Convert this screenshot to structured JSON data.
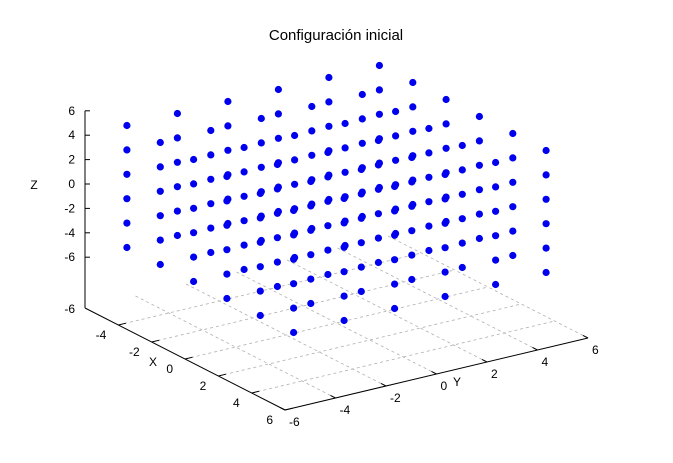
{
  "chart_data": {
    "type": "scatter",
    "title": "Configuración inicial",
    "xlabel": "X",
    "ylabel": "Y",
    "zlabel": "Z",
    "xlim": [
      -6,
      6
    ],
    "ylim": [
      -6,
      6
    ],
    "zlim": [
      -6,
      6
    ],
    "x_ticks": [
      "-4",
      "-2",
      "0",
      "2",
      "4",
      "6"
    ],
    "y_ticks": [
      "-6",
      "-4",
      "-2",
      "0",
      "2",
      "4",
      "6"
    ],
    "z_ticks": [
      "6",
      "4",
      "2",
      "0",
      "-2",
      "-4",
      "-6"
    ],
    "z_floor_tick": "-6",
    "lattice_x": [
      -5,
      -3,
      -1,
      1,
      3,
      5
    ],
    "lattice_y": [
      -5,
      -3,
      -1,
      1,
      3,
      5
    ],
    "lattice_z": [
      -5,
      -3,
      -1,
      1,
      3,
      5
    ],
    "grid": true,
    "marker_color": "#0000ee"
  }
}
